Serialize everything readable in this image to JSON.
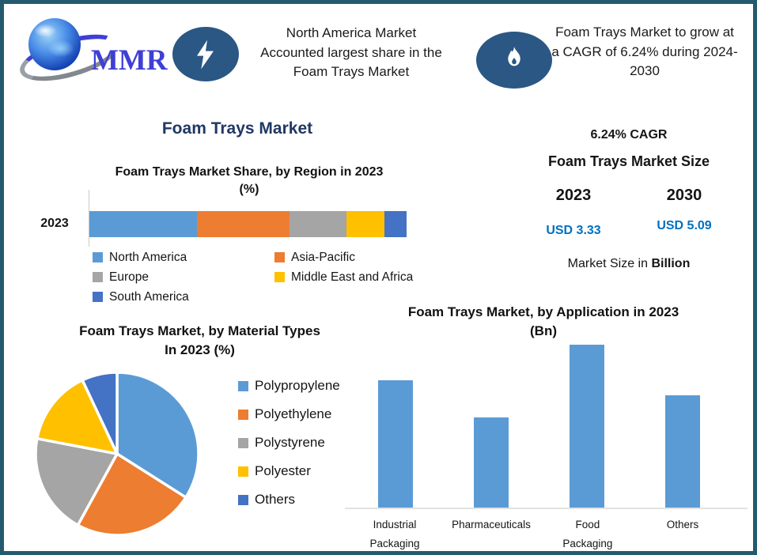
{
  "header": {
    "logo": {
      "text": "MMR"
    },
    "callout_region": {
      "icon": "lightning",
      "lines": [
        "North America Market",
        "Accounted largest share in the",
        "Foam Trays Market"
      ]
    },
    "callout_cagr": {
      "icon": "flame",
      "lines": [
        "Foam Trays Market to grow at",
        "a CAGR of 6.24% during 2024-",
        "2030"
      ]
    }
  },
  "main_title": "Foam Trays Market",
  "stats": {
    "cagr": "6.24% CAGR",
    "size_title": "Foam Trays Market Size",
    "year_start": "2023",
    "year_end": "2030",
    "value_start": "USD 3.33",
    "value_end": "USD 5.09",
    "note_prefix": "Market Size in ",
    "note_bold": "Billion",
    "value_color": "#0070C0"
  },
  "chart_data": [
    {
      "type": "bar",
      "subtype": "stacked-horizontal",
      "title": "Foam Trays Market Share, by Region in 2023 (%)",
      "title_lines": [
        "Foam Trays Market Share, by Region in 2023",
        "(%)"
      ],
      "categories": [
        "2023"
      ],
      "series": [
        {
          "name": "North America",
          "color": "#5B9BD5",
          "values": [
            34
          ]
        },
        {
          "name": "Asia-Pacific",
          "color": "#ED7D31",
          "values": [
            29
          ]
        },
        {
          "name": "Europe",
          "color": "#A5A5A5",
          "values": [
            18
          ]
        },
        {
          "name": "Middle East and Africa",
          "color": "#FFC000",
          "values": [
            12
          ]
        },
        {
          "name": "South America",
          "color": "#4472C4",
          "values": [
            7
          ]
        }
      ],
      "xlim": [
        0,
        100
      ],
      "legend_position": "bottom",
      "grid": false
    },
    {
      "type": "pie",
      "title": "Foam Trays Market, by Material Types In 2023 (%)",
      "title_lines": [
        "Foam Trays Market, by Material Types",
        "In 2023 (%)"
      ],
      "labels": [
        "Polypropylene",
        "Polyethylene",
        "Polystyrene",
        "Polyester",
        "Others"
      ],
      "values": [
        34,
        24,
        20,
        15,
        7
      ],
      "colors": [
        "#5B9BD5",
        "#ED7D31",
        "#A5A5A5",
        "#FFC000",
        "#4472C4"
      ],
      "start_angle_deg": 0,
      "legend_position": "right"
    },
    {
      "type": "bar",
      "title": "Foam Trays Market, by Application in 2023 (Bn)",
      "title_lines": [
        "Foam Trays Market, by Application in 2023",
        "(Bn)"
      ],
      "categories": [
        "Industrial Packaging",
        "Pharmaceuticals",
        "Food Packaging",
        "Others"
      ],
      "values": [
        0.86,
        0.61,
        1.1,
        0.76
      ],
      "color": "#5B9BD5",
      "ylim": [
        0,
        1.1
      ],
      "grid": false,
      "legend_position": "none"
    }
  ]
}
